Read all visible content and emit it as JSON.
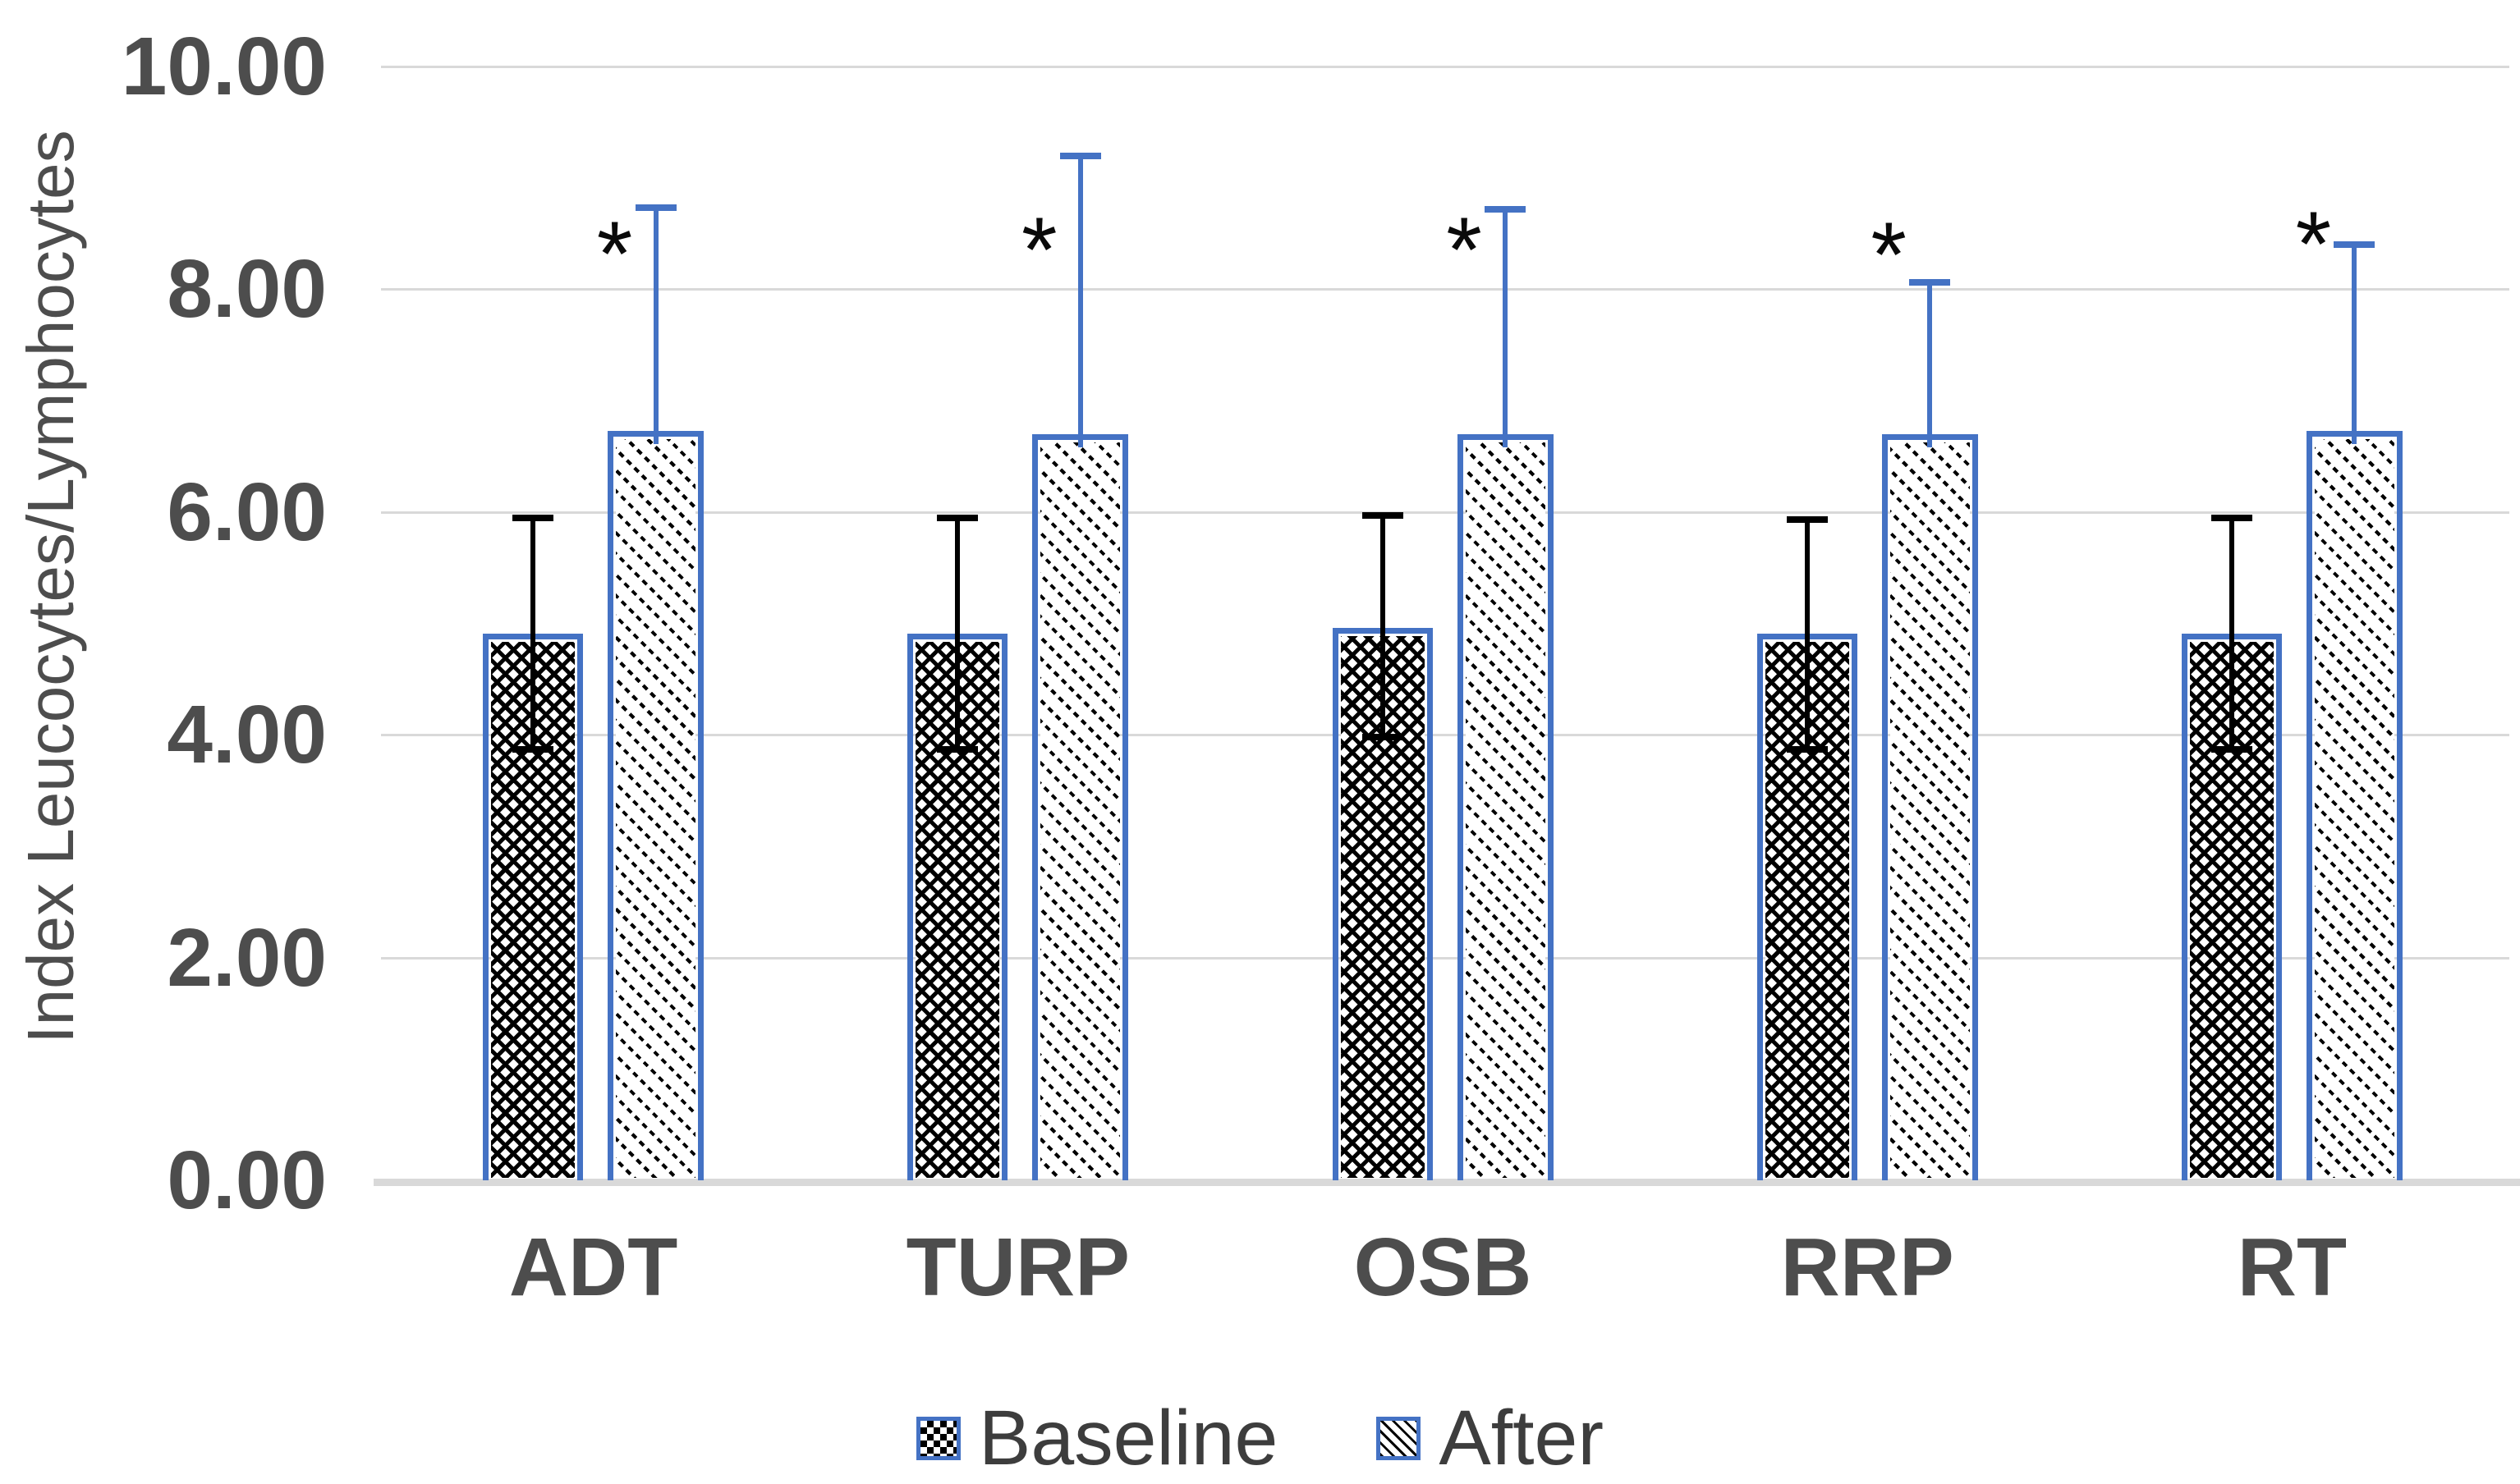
{
  "page": {
    "background": "#ffffff"
  },
  "chart_data": {
    "type": "bar",
    "title": "",
    "ylabel": "Index Leucocytes/Lymphocytes",
    "xlabel": "",
    "categories": [
      "ADT",
      "TURP",
      "OSB",
      "RRP",
      "RT"
    ],
    "ylim": [
      0,
      10
    ],
    "y_ticks": [
      {
        "v": 0,
        "label": "0.00"
      },
      {
        "v": 2,
        "label": "2.00"
      },
      {
        "v": 4,
        "label": "4.00"
      },
      {
        "v": 6,
        "label": "6.00"
      },
      {
        "v": 8,
        "label": "8.00"
      },
      {
        "v": 10,
        "label": "10.00"
      }
    ],
    "grid": true,
    "legend_position": "bottom",
    "series": [
      {
        "name": "Baseline",
        "pattern": "trellis-hatch",
        "edge_color": "#4472C4",
        "error_color": "#000000",
        "values": [
          4.91,
          4.91,
          4.96,
          4.91,
          4.91
        ],
        "err_up": [
          1.04,
          1.04,
          1.01,
          1.02,
          1.04
        ],
        "err_down": [
          1.04,
          1.04,
          0.98,
          1.04,
          1.04
        ]
      },
      {
        "name": "After",
        "pattern": "diagonal-down-stripes",
        "edge_color": "#4472C4",
        "error_color": "#4472C4",
        "values": [
          6.73,
          6.7,
          6.7,
          6.7,
          6.73
        ],
        "err_up": [
          2.0,
          2.5,
          2.02,
          1.36,
          1.67
        ]
      }
    ],
    "annotations": [
      {
        "category": "ADT",
        "symbol": "*",
        "y": 8.46
      },
      {
        "category": "TURP",
        "symbol": "*",
        "y": 8.5
      },
      {
        "category": "OSB",
        "symbol": "*",
        "y": 8.5
      },
      {
        "category": "RRP",
        "symbol": "*",
        "y": 8.45
      },
      {
        "category": "RT",
        "symbol": "*",
        "y": 8.55
      }
    ],
    "colors": {
      "accent_blue": "#4472C4",
      "gridline": "#D9D9D9",
      "axis_text": "#4D4D4D",
      "legend_text": "#3D3D3D",
      "error_black": "#000000"
    }
  }
}
